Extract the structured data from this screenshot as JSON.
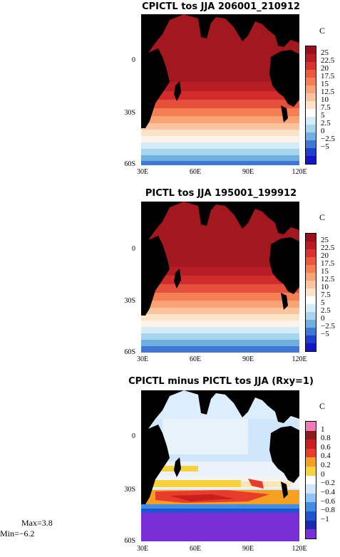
{
  "panels": [
    {
      "title": "CPICTL tos JJA 206001_210912",
      "unit": "C",
      "colorbar_labels": [
        "25",
        "22.5",
        "20",
        "17.5",
        "15",
        "12.5",
        "10",
        "7.5",
        "5",
        "2.5",
        "0",
        "-2.5",
        "-5"
      ],
      "colorbar_colors": [
        "#9c0f1c",
        "#b81c25",
        "#d8312e",
        "#ea5a3a",
        "#f57f52",
        "#f9a273",
        "#fbc49e",
        "#fde4c8",
        "#ffffff",
        "#d4ecf6",
        "#a8d5ee",
        "#6fb0e3",
        "#3f78d4",
        "#1d3fd0",
        "#1414c8"
      ]
    },
    {
      "title": "PICTL tos JJA 195001_199912",
      "unit": "C",
      "colorbar_labels": [
        "25",
        "22.5",
        "20",
        "17.5",
        "15",
        "12.5",
        "10",
        "7.5",
        "5",
        "2.5",
        "0",
        "-2.5",
        "-5"
      ],
      "colorbar_colors": [
        "#9c0f1c",
        "#b81c25",
        "#d8312e",
        "#ea5a3a",
        "#f57f52",
        "#f9a273",
        "#fbc49e",
        "#fde4c8",
        "#ffffff",
        "#d4ecf6",
        "#a8d5ee",
        "#6fb0e3",
        "#3f78d4",
        "#1d3fd0",
        "#1414c8"
      ]
    },
    {
      "title": "CPICTL minus PICTL tos JJA (Rxy=1)",
      "unit": "C",
      "colorbar_labels": [
        "1",
        "0.8",
        "0.6",
        "0.4",
        "0.2",
        "0",
        "-0.2",
        "-0.4",
        "-0.6",
        "-0.8",
        "-1"
      ],
      "colorbar_colors": [
        "#f07ab8",
        "#8b1a1a",
        "#c81e1e",
        "#ea3c2c",
        "#f5a020",
        "#f7d23c",
        "#ffffff",
        "#cfe6fb",
        "#8ec3f3",
        "#3f8ee6",
        "#1e54d0",
        "#1a2ab0",
        "#7a2fd6"
      ]
    }
  ],
  "axes": {
    "x_ticks": [
      "30E",
      "60E",
      "90E",
      "120E"
    ],
    "y_ticks": [
      "0",
      "30S",
      "60S"
    ]
  },
  "stats": {
    "max": "Max=3.8",
    "min": "Min=−6.2"
  }
}
